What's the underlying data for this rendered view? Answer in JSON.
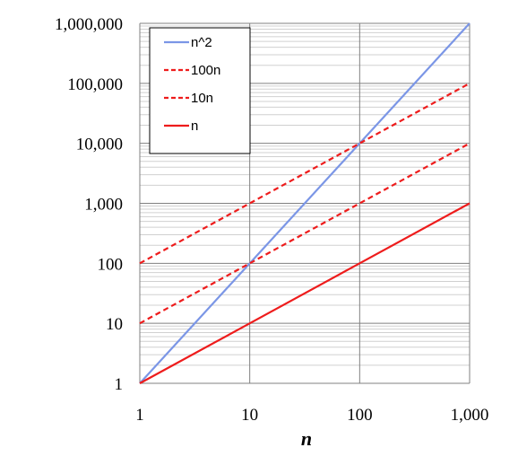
{
  "chart_data": {
    "type": "line",
    "title": "",
    "xlabel": "n",
    "ylabel": "",
    "x_scale": "log",
    "y_scale": "log",
    "xlim": [
      1,
      1000
    ],
    "ylim": [
      1,
      1000000
    ],
    "x_ticks": [
      1,
      10,
      100,
      1000
    ],
    "x_tick_labels": [
      "1",
      "10",
      "100",
      "1,000"
    ],
    "y_ticks": [
      1,
      10,
      100,
      1000,
      10000,
      100000,
      1000000
    ],
    "y_tick_labels": [
      "1",
      "10",
      "100",
      "1,000",
      "10,000",
      "100,000",
      "1,000,000"
    ],
    "grid": true,
    "minor_grid": true,
    "legend_position": "top-left",
    "x": [
      1,
      10,
      100,
      1000
    ],
    "series": [
      {
        "name": "n^2",
        "values": [
          1,
          100,
          10000,
          1000000
        ],
        "color": "#7b96e6",
        "dash": "solid"
      },
      {
        "name": "100n",
        "values": [
          100,
          1000,
          10000,
          100000
        ],
        "color": "#ee1c1c",
        "dash": "dashed"
      },
      {
        "name": "10n",
        "values": [
          10,
          100,
          1000,
          10000
        ],
        "color": "#ee1c1c",
        "dash": "dashed"
      },
      {
        "name": "n",
        "values": [
          1,
          10,
          100,
          1000
        ],
        "color": "#ee1c1c",
        "dash": "solid"
      }
    ]
  }
}
